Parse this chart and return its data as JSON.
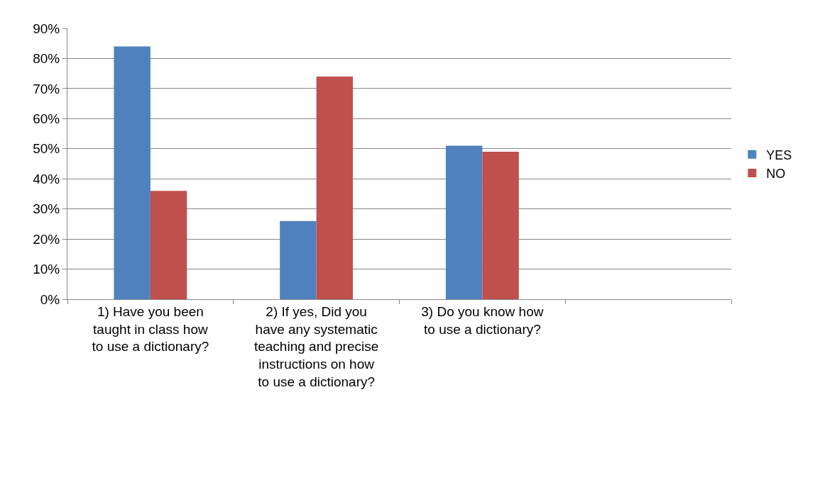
{
  "chart_data": {
    "type": "bar",
    "categories": [
      "1) Have you been taught in class how to use a dictionary?",
      "2) If yes, Did you have any systematic teaching and precise instructions on how to use a dictionary?",
      "3) Do you know how to use a dictionary?",
      null
    ],
    "series": [
      {
        "name": "YES",
        "color": "#4f81bd",
        "values": [
          84,
          26,
          51,
          null
        ]
      },
      {
        "name": "NO",
        "color": "#c0504d",
        "values": [
          36,
          74,
          49,
          null
        ]
      }
    ],
    "ylim": [
      0,
      90
    ],
    "yticks": [
      {
        "value": 0,
        "label": "0%"
      },
      {
        "value": 10,
        "label": "10%"
      },
      {
        "value": 20,
        "label": "20%"
      },
      {
        "value": 30,
        "label": "30%"
      },
      {
        "value": 40,
        "label": "40%"
      },
      {
        "value": 50,
        "label": "50%"
      },
      {
        "value": 60,
        "label": "60%"
      },
      {
        "value": 70,
        "label": "70%"
      },
      {
        "value": 80,
        "label": "80%"
      },
      {
        "value": 90,
        "label": "90%"
      }
    ],
    "grid": "y",
    "legend": "right"
  }
}
